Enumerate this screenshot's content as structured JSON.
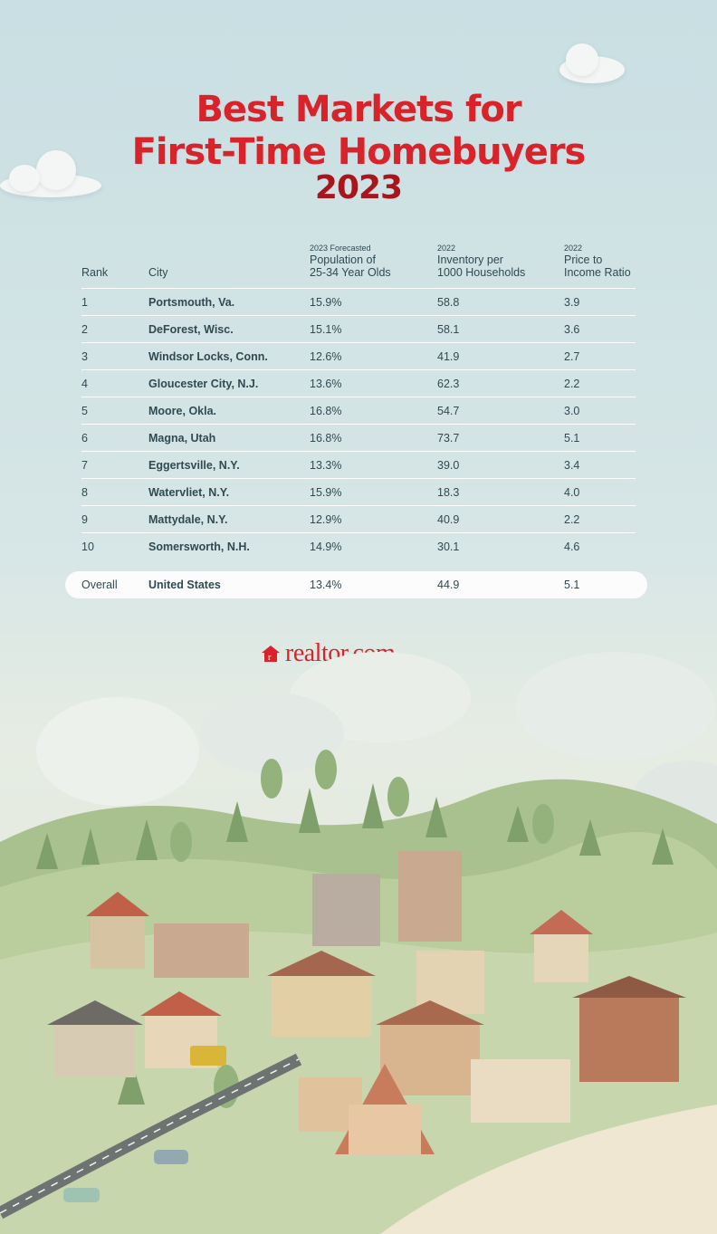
{
  "title": {
    "line1": "Best Markets for",
    "line2": "First-Time Homebuyers",
    "line3": "2023"
  },
  "table": {
    "headers": {
      "rank": "Rank",
      "city": "City",
      "population": {
        "small": "2023 Forecasted",
        "main1": "Population of",
        "main2": "25-34 Year Olds"
      },
      "inventory": {
        "small": "2022",
        "main1": "Inventory per",
        "main2": "1000 Households"
      },
      "ratio": {
        "small": "2022",
        "main1": "Price to",
        "main2": "Income Ratio"
      }
    },
    "rows": [
      {
        "rank": "1",
        "city": "Portsmouth, Va.",
        "population": "15.9%",
        "inventory": "58.8",
        "ratio": "3.9"
      },
      {
        "rank": "2",
        "city": "DeForest, Wisc.",
        "population": "15.1%",
        "inventory": "58.1",
        "ratio": "3.6"
      },
      {
        "rank": "3",
        "city": "Windsor Locks, Conn.",
        "population": "12.6%",
        "inventory": "41.9",
        "ratio": "2.7"
      },
      {
        "rank": "4",
        "city": "Gloucester City, N.J.",
        "population": "13.6%",
        "inventory": "62.3",
        "ratio": "2.2"
      },
      {
        "rank": "5",
        "city": "Moore, Okla.",
        "population": "16.8%",
        "inventory": "54.7",
        "ratio": "3.0"
      },
      {
        "rank": "6",
        "city": "Magna, Utah",
        "population": "16.8%",
        "inventory": "73.7",
        "ratio": "5.1"
      },
      {
        "rank": "7",
        "city": "Eggertsville, N.Y.",
        "population": "13.3%",
        "inventory": "39.0",
        "ratio": "3.4"
      },
      {
        "rank": "8",
        "city": "Watervliet, N.Y.",
        "population": "15.9%",
        "inventory": "18.3",
        "ratio": "4.0"
      },
      {
        "rank": "9",
        "city": "Mattydale, N.Y.",
        "population": "12.9%",
        "inventory": "40.9",
        "ratio": "2.2"
      },
      {
        "rank": "10",
        "city": "Somersworth, N.H.",
        "population": "14.9%",
        "inventory": "30.1",
        "ratio": "4.6"
      }
    ],
    "overall": {
      "rank": "Overall",
      "city": "United States",
      "population": "13.4%",
      "inventory": "44.9",
      "ratio": "5.1"
    }
  },
  "logo": {
    "text": "realtor.com",
    "icon": "house-icon"
  },
  "colors": {
    "title": "#d8232a",
    "year": "#a8161c",
    "text": "#2f4a52"
  }
}
